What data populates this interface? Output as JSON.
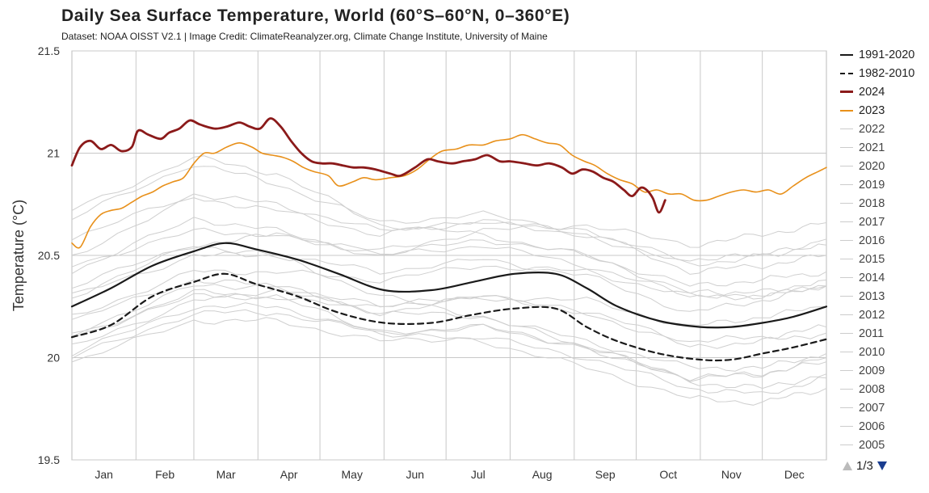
{
  "title": "Daily Sea Surface Temperature, World (60°S–60°N, 0–360°E)",
  "subtitle": "Dataset: NOAA OISST V2.1 | Image Credit: ClimateReanalyzer.org, Climate Change Institute, University of Maine",
  "pager": {
    "text": "1/3"
  },
  "chart_data": {
    "type": "line",
    "title": "Daily Sea Surface Temperature, World (60°S–60°N, 0–360°E)",
    "ylabel": "Temperature (°C)",
    "xlabel": "",
    "ylim": [
      19.5,
      21.5
    ],
    "yticks": [
      19.5,
      20,
      20.5,
      21,
      21.5
    ],
    "ytick_labels": [
      "19.5",
      "20",
      "20.5",
      "21",
      "21.5"
    ],
    "xlim": [
      1,
      366
    ],
    "x_unit": "day of year",
    "month_labels": [
      "Jan",
      "Feb",
      "Mar",
      "Apr",
      "May",
      "Jun",
      "Jul",
      "Aug",
      "Sep",
      "Oct",
      "Nov",
      "Dec"
    ],
    "month_starts": [
      1,
      32,
      60,
      91,
      121,
      152,
      182,
      213,
      244,
      274,
      305,
      335
    ],
    "grid": true,
    "legend_position": "right",
    "series": [
      {
        "name": "1991-2020",
        "color": "#1a1a1a",
        "style": "solid",
        "width": 2.2,
        "x": [
          1,
          20,
          40,
          60,
          75,
          90,
          110,
          130,
          152,
          175,
          195,
          215,
          235,
          250,
          265,
          285,
          305,
          320,
          335,
          350,
          366
        ],
        "y": [
          20.25,
          20.34,
          20.45,
          20.52,
          20.56,
          20.53,
          20.48,
          20.41,
          20.33,
          20.33,
          20.37,
          20.41,
          20.41,
          20.34,
          20.25,
          20.18,
          20.15,
          20.15,
          20.17,
          20.2,
          20.25
        ]
      },
      {
        "name": "1982-2010",
        "color": "#1a1a1a",
        "style": "dashed",
        "width": 2.2,
        "x": [
          1,
          20,
          40,
          60,
          75,
          90,
          110,
          130,
          152,
          175,
          195,
          215,
          235,
          250,
          265,
          285,
          305,
          320,
          335,
          350,
          366
        ],
        "y": [
          20.1,
          20.16,
          20.3,
          20.37,
          20.41,
          20.36,
          20.3,
          20.22,
          20.17,
          20.17,
          20.21,
          20.24,
          20.24,
          20.15,
          20.08,
          20.02,
          19.99,
          19.99,
          20.02,
          20.05,
          20.09
        ]
      },
      {
        "name": "2024",
        "color": "#8b1a1a",
        "style": "solid",
        "width": 2.8,
        "x": [
          1,
          5,
          10,
          15,
          20,
          25,
          30,
          33,
          38,
          44,
          48,
          53,
          58,
          63,
          70,
          76,
          82,
          87,
          92,
          97,
          102,
          107,
          112,
          117,
          122,
          127,
          132,
          137,
          142,
          148,
          155,
          160,
          167,
          173,
          178,
          185,
          190,
          196,
          202,
          208,
          213,
          220,
          226,
          232,
          238,
          243,
          248,
          253,
          258,
          263,
          268,
          272,
          276,
          279,
          282,
          285,
          288
        ],
        "y": [
          20.94,
          21.03,
          21.06,
          21.02,
          21.04,
          21.01,
          21.03,
          21.11,
          21.09,
          21.07,
          21.1,
          21.12,
          21.16,
          21.14,
          21.12,
          21.13,
          21.15,
          21.13,
          21.12,
          21.17,
          21.13,
          21.06,
          21.0,
          20.96,
          20.95,
          20.95,
          20.94,
          20.93,
          20.93,
          20.92,
          20.9,
          20.89,
          20.93,
          20.97,
          20.96,
          20.95,
          20.96,
          20.97,
          20.99,
          20.96,
          20.96,
          20.95,
          20.94,
          20.95,
          20.93,
          20.9,
          20.92,
          20.91,
          20.88,
          20.86,
          20.82,
          20.79,
          20.83,
          20.82,
          20.78,
          20.71,
          20.77
        ]
      },
      {
        "name": "2023",
        "color": "#e8901a",
        "style": "solid",
        "width": 1.6,
        "x": [
          1,
          5,
          10,
          15,
          20,
          25,
          30,
          35,
          40,
          45,
          50,
          55,
          60,
          65,
          70,
          76,
          82,
          88,
          93,
          98,
          103,
          108,
          113,
          118,
          125,
          130,
          137,
          142,
          148,
          155,
          162,
          168,
          174,
          180,
          187,
          193,
          200,
          206,
          213,
          219,
          225,
          231,
          237,
          243,
          249,
          254,
          260,
          266,
          272,
          278,
          284,
          290,
          296,
          302,
          308,
          314,
          320,
          326,
          332,
          338,
          344,
          350,
          356,
          362,
          366
        ],
        "y": [
          20.56,
          20.54,
          20.64,
          20.7,
          20.72,
          20.73,
          20.76,
          20.79,
          20.81,
          20.84,
          20.86,
          20.88,
          20.95,
          21.0,
          21.0,
          21.03,
          21.05,
          21.03,
          21.0,
          20.99,
          20.98,
          20.96,
          20.93,
          20.91,
          20.89,
          20.84,
          20.86,
          20.88,
          20.87,
          20.88,
          20.89,
          20.92,
          20.97,
          21.01,
          21.02,
          21.04,
          21.04,
          21.06,
          21.07,
          21.09,
          21.07,
          21.05,
          21.04,
          20.99,
          20.96,
          20.94,
          20.9,
          20.87,
          20.85,
          20.81,
          20.82,
          20.8,
          20.8,
          20.77,
          20.77,
          20.79,
          20.81,
          20.82,
          20.81,
          20.82,
          20.8,
          20.84,
          20.88,
          20.91,
          20.93
        ]
      },
      {
        "name": "2022",
        "color": "#cccccc",
        "style": "solid",
        "width": 1
      },
      {
        "name": "2021",
        "color": "#cccccc",
        "style": "solid",
        "width": 1
      },
      {
        "name": "2020",
        "color": "#cccccc",
        "style": "solid",
        "width": 1
      },
      {
        "name": "2019",
        "color": "#cccccc",
        "style": "solid",
        "width": 1
      },
      {
        "name": "2018",
        "color": "#cccccc",
        "style": "solid",
        "width": 1
      },
      {
        "name": "2017",
        "color": "#cccccc",
        "style": "solid",
        "width": 1
      },
      {
        "name": "2016",
        "color": "#cccccc",
        "style": "solid",
        "width": 1
      },
      {
        "name": "2015",
        "color": "#cccccc",
        "style": "solid",
        "width": 1
      },
      {
        "name": "2014",
        "color": "#cccccc",
        "style": "solid",
        "width": 1
      },
      {
        "name": "2013",
        "color": "#cccccc",
        "style": "solid",
        "width": 1
      },
      {
        "name": "2012",
        "color": "#cccccc",
        "style": "solid",
        "width": 1
      },
      {
        "name": "2011",
        "color": "#cccccc",
        "style": "solid",
        "width": 1
      },
      {
        "name": "2010",
        "color": "#cccccc",
        "style": "solid",
        "width": 1
      },
      {
        "name": "2009",
        "color": "#cccccc",
        "style": "solid",
        "width": 1
      },
      {
        "name": "2008",
        "color": "#cccccc",
        "style": "solid",
        "width": 1
      },
      {
        "name": "2007",
        "color": "#cccccc",
        "style": "solid",
        "width": 1
      },
      {
        "name": "2006",
        "color": "#cccccc",
        "style": "solid",
        "width": 1
      },
      {
        "name": "2005",
        "color": "#cccccc",
        "style": "solid",
        "width": 1
      }
    ],
    "background_series_note_values": {
      "x": [
        1,
        60,
        100,
        150,
        200,
        250,
        300,
        335,
        366
      ],
      "2022": [
        20.58,
        20.8,
        20.75,
        20.62,
        20.66,
        20.6,
        20.48,
        20.5,
        20.55
      ],
      "2021": [
        20.45,
        20.62,
        20.6,
        20.5,
        20.58,
        20.5,
        20.35,
        20.38,
        20.42
      ],
      "2020": [
        20.68,
        20.95,
        20.85,
        20.66,
        20.7,
        20.62,
        20.42,
        20.45,
        20.5
      ],
      "2019": [
        20.5,
        20.78,
        20.72,
        20.6,
        20.68,
        20.6,
        20.45,
        20.5,
        20.58
      ],
      "2018": [
        20.3,
        20.5,
        20.5,
        20.42,
        20.48,
        20.4,
        20.22,
        20.28,
        20.35
      ],
      "2017": [
        20.42,
        20.68,
        20.62,
        20.5,
        20.55,
        20.45,
        20.3,
        20.32,
        20.38
      ],
      "2016": [
        20.72,
        20.98,
        20.9,
        20.65,
        20.6,
        20.5,
        20.32,
        20.3,
        20.35
      ],
      "2015": [
        20.35,
        20.55,
        20.6,
        20.52,
        20.62,
        20.65,
        20.55,
        20.6,
        20.66
      ],
      "2014": [
        20.2,
        20.42,
        20.42,
        20.38,
        20.45,
        20.42,
        20.3,
        20.3,
        20.35
      ],
      "2013": [
        20.18,
        20.38,
        20.35,
        20.25,
        20.3,
        20.22,
        20.08,
        20.1,
        20.15
      ],
      "2012": [
        20.1,
        20.3,
        20.32,
        20.25,
        20.3,
        20.22,
        20.05,
        20.08,
        20.12
      ],
      "2011": [
        20.0,
        20.22,
        20.22,
        20.12,
        20.15,
        20.05,
        19.9,
        19.92,
        19.98
      ],
      "2010": [
        20.3,
        20.55,
        20.5,
        20.3,
        20.2,
        20.05,
        19.88,
        19.85,
        19.92
      ],
      "2009": [
        20.05,
        20.28,
        20.3,
        20.22,
        20.3,
        20.28,
        20.15,
        20.2,
        20.25
      ],
      "2008": [
        19.98,
        20.18,
        20.18,
        20.08,
        20.1,
        20.0,
        19.85,
        19.82,
        19.9
      ],
      "2007": [
        20.1,
        20.32,
        20.3,
        20.12,
        20.08,
        19.95,
        19.8,
        19.78,
        19.85
      ],
      "2006": [
        20.02,
        20.25,
        20.25,
        20.12,
        20.15,
        20.05,
        19.9,
        19.92,
        20.0
      ],
      "2005": [
        20.12,
        20.35,
        20.35,
        20.22,
        20.2,
        20.08,
        19.95,
        19.95,
        20.02
      ]
    }
  }
}
